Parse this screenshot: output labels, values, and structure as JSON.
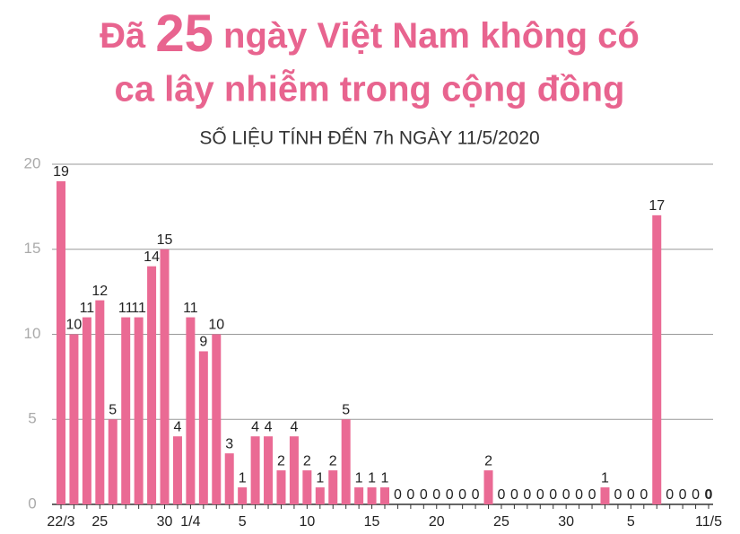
{
  "chart_data": {
    "type": "bar",
    "title_prefix": "Đã",
    "title_highlight": "25",
    "title_rest": "ngày Việt Nam không có",
    "title_line2": "ca lây nhiễm trong cộng đồng",
    "subtitle": "SỐ LIỆU TÍNH ĐẾN 7h NGÀY 11/5/2020",
    "categories": [
      "22/3",
      null,
      null,
      "25",
      null,
      null,
      null,
      null,
      "30",
      null,
      "1/4",
      null,
      null,
      null,
      "5",
      null,
      null,
      null,
      null,
      "10",
      null,
      null,
      null,
      null,
      "15",
      null,
      null,
      null,
      null,
      "20",
      null,
      null,
      null,
      null,
      "25",
      null,
      null,
      null,
      null,
      "30",
      null,
      null,
      null,
      null,
      "5",
      null,
      null,
      null,
      null,
      null,
      "11/5"
    ],
    "values": [
      19,
      10,
      11,
      12,
      5,
      11,
      11,
      14,
      15,
      4,
      11,
      9,
      10,
      3,
      1,
      4,
      4,
      2,
      4,
      2,
      1,
      2,
      5,
      1,
      1,
      1,
      0,
      0,
      0,
      0,
      0,
      0,
      0,
      2,
      0,
      0,
      0,
      0,
      0,
      0,
      0,
      0,
      1,
      0,
      0,
      0,
      17,
      0,
      0,
      0,
      0
    ],
    "color": "#ea6a94",
    "ylim": [
      0,
      20
    ],
    "yticks": [
      0,
      5,
      10,
      15,
      20
    ],
    "grid": true
  }
}
